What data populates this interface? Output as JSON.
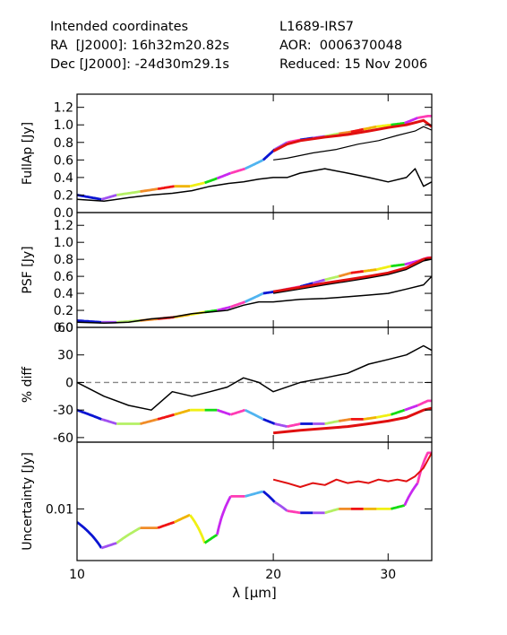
{
  "header": {
    "left": [
      "Intended coordinates",
      "RA  [J2000]: 16h32m20.82s",
      "Dec [J2000]: -24d30m29.1s"
    ],
    "right": [
      "L1689-IRS7",
      "AOR:  0006370048",
      "Reduced: 15 Nov 2006"
    ]
  },
  "chart_data": {
    "type": "line",
    "xlabel": "λ [μm]",
    "xscale": "log",
    "xlim": [
      10,
      35
    ],
    "xticks": [
      10,
      20,
      30
    ],
    "xticklabels": [
      "10",
      "20",
      "30"
    ],
    "segment_colors": [
      "#0a14d2",
      "#a050f0",
      "#b4f064",
      "#f08c28",
      "#f01414",
      "#f0b400",
      "#f0f014",
      "#14dc14",
      "#c828f0",
      "#ff3cb4",
      "#50b4f0",
      "#0a14d2",
      "#a050f0",
      "#ff3cb4"
    ],
    "order_breaks": [
      10.0,
      10.9,
      11.5,
      12.5,
      13.3,
      14.1,
      14.9,
      15.7,
      16.4,
      17.2,
      18.1,
      19.3,
      20.1,
      21.0,
      22.0,
      23.0,
      24.0,
      25.2,
      26.3,
      27.5,
      28.8,
      30.3,
      31.8,
      33.3,
      35.0
    ],
    "panels": [
      {
        "ylabel": "FullAp [Jy]",
        "ylim": [
          0,
          1.35
        ],
        "yticks": [
          0,
          0.2,
          0.4,
          0.6,
          0.8,
          1.0,
          1.2
        ],
        "yticklabels": [
          "0.0",
          "0.2",
          "0.4",
          "0.6",
          "0.8",
          "1.0",
          "1.2"
        ],
        "series": [
          {
            "role": "colored spectrum",
            "x": [
              10.0,
              10.9,
              11.5,
              12.5,
              13.3,
              14.1,
              14.9,
              15.7,
              16.4,
              17.2,
              18.1,
              19.3,
              20.1,
              21.0,
              22.0,
              23.0,
              24.0,
              25.2,
              26.3,
              27.5,
              28.8,
              30.3,
              31.8,
              33.3,
              34.5
            ],
            "y": [
              0.2,
              0.15,
              0.2,
              0.24,
              0.27,
              0.3,
              0.3,
              0.34,
              0.39,
              0.45,
              0.5,
              0.6,
              0.72,
              0.8,
              0.83,
              0.85,
              0.87,
              0.9,
              0.92,
              0.95,
              0.98,
              1.0,
              1.02,
              1.08,
              1.1
            ]
          },
          {
            "role": "red fit",
            "color": "#e01010",
            "x": [
              20.0,
              21.0,
              22.0,
              24.0,
              26.0,
              28.0,
              30.0,
              32.0,
              34.0,
              35.0
            ],
            "y": [
              0.7,
              0.78,
              0.82,
              0.86,
              0.89,
              0.93,
              0.97,
              1.0,
              1.05,
              0.98
            ]
          },
          {
            "role": "thin black",
            "color": "#000000",
            "x": [
              20.0,
              21.0,
              23.0,
              25.0,
              27.0,
              29.0,
              31.0,
              33.0,
              34.0,
              35.0
            ],
            "y": [
              0.6,
              0.62,
              0.68,
              0.72,
              0.78,
              0.82,
              0.88,
              0.93,
              0.98,
              0.94
            ]
          },
          {
            "role": "black spectrum",
            "color": "#000000",
            "x": [
              10.0,
              11.0,
              12.0,
              13.0,
              14.0,
              15.0,
              16.0,
              17.0,
              18.0,
              19.0,
              20.0,
              21.0,
              22.0,
              24.0,
              26.0,
              28.0,
              30.0,
              32.0,
              33.0,
              34.0,
              35.0
            ],
            "y": [
              0.15,
              0.13,
              0.17,
              0.2,
              0.22,
              0.25,
              0.3,
              0.33,
              0.35,
              0.38,
              0.4,
              0.4,
              0.45,
              0.5,
              0.45,
              0.4,
              0.35,
              0.4,
              0.5,
              0.3,
              0.35
            ]
          }
        ]
      },
      {
        "ylabel": "PSF [Jy]",
        "ylim": [
          0,
          1.35
        ],
        "yticks": [
          0,
          0.2,
          0.4,
          0.6,
          0.8,
          1.0,
          1.2
        ],
        "yticklabels": [
          "0.0",
          "0.2",
          "0.4",
          "0.6",
          "0.8",
          "1.0",
          "1.2"
        ],
        "series": [
          {
            "role": "colored spectrum",
            "x": [
              10.0,
              10.9,
              11.5,
              12.5,
              13.3,
              14.1,
              14.9,
              15.7,
              16.4,
              17.2,
              18.1,
              19.3,
              20.1,
              21.0,
              22.0,
              23.0,
              24.0,
              25.2,
              26.3,
              27.5,
              28.8,
              30.3,
              31.8,
              33.3,
              34.5
            ],
            "y": [
              0.08,
              0.06,
              0.06,
              0.08,
              0.1,
              0.12,
              0.15,
              0.18,
              0.2,
              0.24,
              0.3,
              0.4,
              0.42,
              0.45,
              0.48,
              0.52,
              0.56,
              0.6,
              0.64,
              0.66,
              0.68,
              0.72,
              0.74,
              0.78,
              0.82
            ]
          },
          {
            "role": "red fit",
            "color": "#e01010",
            "x": [
              20.0,
              22.0,
              24.0,
              26.0,
              28.0,
              30.0,
              32.0,
              34.0,
              35.0
            ],
            "y": [
              0.42,
              0.47,
              0.52,
              0.56,
              0.6,
              0.64,
              0.7,
              0.8,
              0.82
            ]
          },
          {
            "role": "thin black",
            "color": "#000000",
            "x": [
              20.0,
              22.0,
              24.0,
              26.0,
              28.0,
              30.0,
              32.0,
              34.0,
              35.0
            ],
            "y": [
              0.4,
              0.45,
              0.5,
              0.54,
              0.58,
              0.62,
              0.68,
              0.78,
              0.8
            ]
          },
          {
            "role": "black spectrum",
            "color": "#000000",
            "x": [
              10.0,
              11.0,
              12.0,
              13.0,
              14.0,
              15.0,
              16.0,
              17.0,
              18.0,
              19.0,
              20.0,
              22.0,
              24.0,
              26.0,
              28.0,
              30.0,
              32.0,
              34.0,
              35.0
            ],
            "y": [
              0.06,
              0.05,
              0.06,
              0.1,
              0.12,
              0.16,
              0.18,
              0.2,
              0.26,
              0.3,
              0.3,
              0.33,
              0.34,
              0.36,
              0.38,
              0.4,
              0.45,
              0.5,
              0.6
            ]
          }
        ]
      },
      {
        "ylabel": "% diff",
        "ylim": [
          -65,
          60
        ],
        "yticks": [
          -60,
          -30,
          0,
          30,
          60
        ],
        "yticklabels": [
          "-60",
          "-30",
          "0",
          "30",
          "60"
        ],
        "zero_line": 0,
        "series": [
          {
            "role": "colored spectrum",
            "x": [
              10.0,
              10.9,
              11.5,
              12.5,
              13.3,
              14.1,
              14.9,
              15.7,
              16.4,
              17.2,
              18.1,
              19.3,
              20.1,
              21.0,
              22.0,
              23.0,
              24.0,
              25.2,
              26.3,
              27.5,
              28.8,
              30.3,
              31.8,
              33.3,
              34.5
            ],
            "y": [
              -30,
              -40,
              -45,
              -45,
              -40,
              -35,
              -30,
              -30,
              -30,
              -35,
              -30,
              -40,
              -45,
              -48,
              -45,
              -45,
              -45,
              -42,
              -40,
              -40,
              -38,
              -35,
              -30,
              -25,
              -20
            ]
          },
          {
            "role": "red fit",
            "color": "#e01010",
            "x": [
              20.0,
              22.0,
              24.0,
              26.0,
              28.0,
              30.0,
              32.0,
              34.0,
              35.0
            ],
            "y": [
              -55,
              -52,
              -50,
              -48,
              -45,
              -42,
              -38,
              -30,
              -28
            ]
          },
          {
            "role": "black spectrum",
            "color": "#000000",
            "x": [
              10.0,
              11.0,
              12.0,
              13.0,
              14.0,
              15.0,
              16.0,
              17.0,
              18.0,
              19.0,
              20.0,
              22.0,
              24.0,
              26.0,
              28.0,
              30.0,
              32.0,
              34.0,
              35.0
            ],
            "y": [
              0,
              -15,
              -25,
              -30,
              -10,
              -15,
              -10,
              -5,
              5,
              0,
              -10,
              0,
              5,
              10,
              20,
              25,
              30,
              40,
              35
            ]
          }
        ]
      },
      {
        "ylabel": "Uncertainty [Jy]",
        "yscale": "log",
        "ylim": [
          0.0025,
          0.06
        ],
        "yticks": [
          0.01
        ],
        "yticklabels": [
          "0.01"
        ],
        "series": [
          {
            "role": "colored spectrum",
            "x": [
              10.0,
              10.9,
              11.5,
              12.5,
              13.3,
              14.1,
              14.9,
              15.7,
              16.4,
              17.2,
              18.1,
              19.3,
              20.1,
              21.0,
              22.0,
              23.0,
              24.0,
              25.2,
              26.3,
              27.5,
              28.8,
              30.3,
              31.8,
              33.3,
              34.5
            ],
            "y": [
              0.007,
              0.0035,
              0.004,
              0.006,
              0.006,
              0.007,
              0.0085,
              0.004,
              0.005,
              0.014,
              0.014,
              0.016,
              0.012,
              0.0095,
              0.009,
              0.009,
              0.009,
              0.01,
              0.01,
              0.01,
              0.01,
              0.01,
              0.011,
              0.02,
              0.045
            ]
          },
          {
            "role": "red line",
            "color": "#e01010",
            "x": [
              20.0,
              21.0,
              22.0,
              23.0,
              24.0,
              25.0,
              26.0,
              27.0,
              28.0,
              29.0,
              30.0,
              31.0,
              32.0,
              33.0,
              34.0,
              35.0
            ],
            "y": [
              0.022,
              0.02,
              0.018,
              0.02,
              0.019,
              0.022,
              0.02,
              0.021,
              0.02,
              0.022,
              0.021,
              0.022,
              0.021,
              0.024,
              0.03,
              0.045
            ]
          }
        ]
      }
    ]
  }
}
